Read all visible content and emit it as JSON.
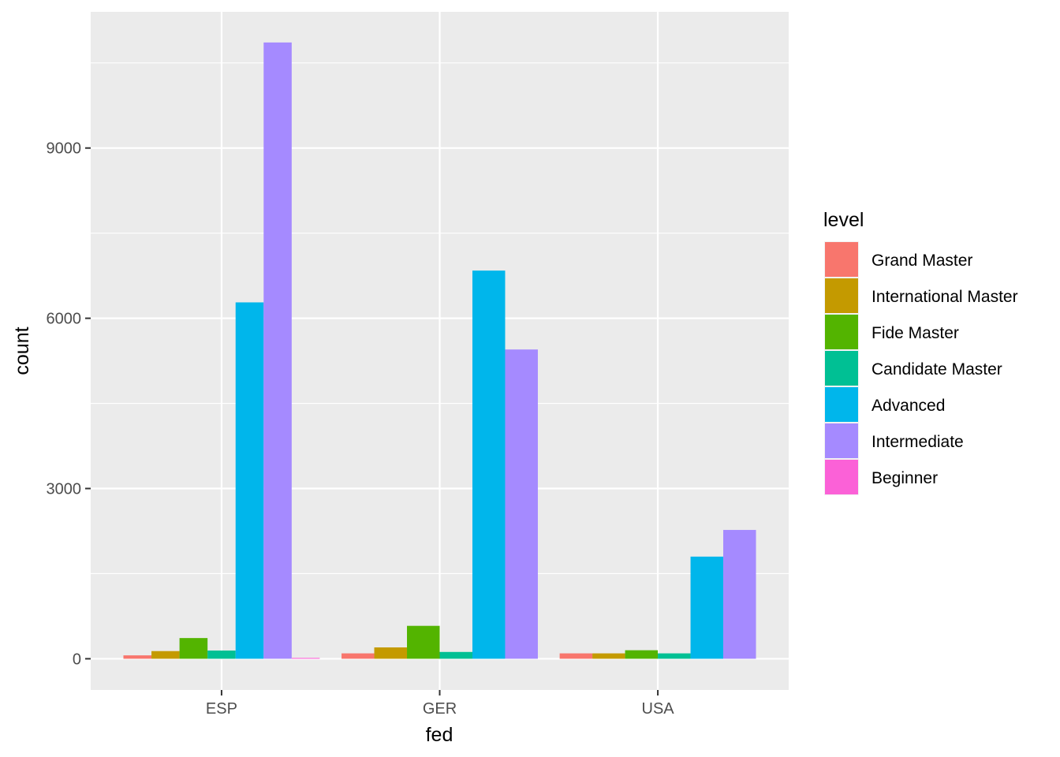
{
  "chart_data": {
    "type": "bar",
    "layout": "grouped",
    "xlabel": "fed",
    "ylabel": "count",
    "categories": [
      "ESP",
      "GER",
      "USA"
    ],
    "ylim": [
      -550,
      11400
    ],
    "yticks": [
      0,
      3000,
      6000,
      9000
    ],
    "ytick_labels": [
      "0",
      "3000",
      "6000",
      "9000"
    ],
    "grid": true,
    "legend": {
      "title": "level",
      "position": "right"
    },
    "series": [
      {
        "name": "Grand Master",
        "color": "#F8766D",
        "values": [
          60,
          95,
          95
        ]
      },
      {
        "name": "International Master",
        "color": "#C49A00",
        "values": [
          135,
          200,
          95
        ]
      },
      {
        "name": "Fide Master",
        "color": "#53B400",
        "values": [
          365,
          580,
          150
        ]
      },
      {
        "name": "Candidate Master",
        "color": "#00C094",
        "values": [
          145,
          120,
          95
        ]
      },
      {
        "name": "Advanced",
        "color": "#00B6EB",
        "values": [
          6280,
          6840,
          1800
        ]
      },
      {
        "name": "Intermediate",
        "color": "#A58AFF",
        "values": [
          10860,
          5450,
          2270
        ]
      },
      {
        "name": "Beginner",
        "color": "#FB61D7",
        "values": [
          15,
          null,
          null
        ]
      }
    ]
  }
}
